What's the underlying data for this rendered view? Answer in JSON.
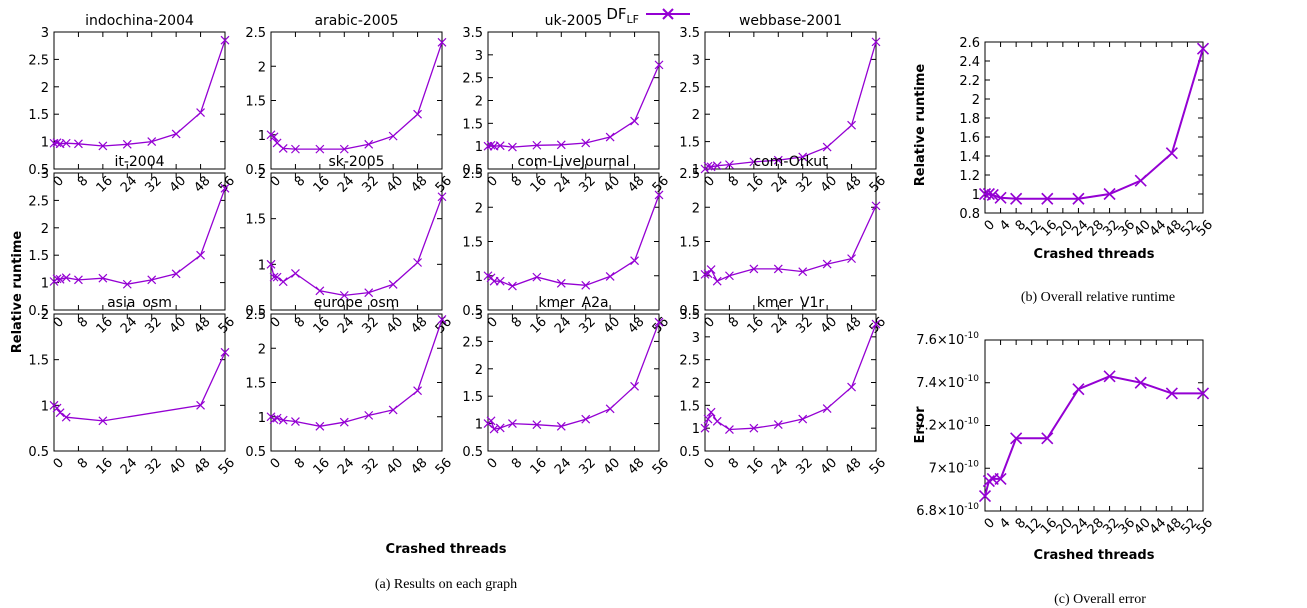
{
  "legend": {
    "label": "DF",
    "label_sub": "LF",
    "series_color": "#9400d3"
  },
  "captions": {
    "a": "(a)  Results on each graph",
    "b": "(b)  Overall relative runtime",
    "c": "(c)  Overall error"
  },
  "labels": {
    "grid_ylabel": "Relative runtime",
    "grid_xlabel": "Crashed threads",
    "b_ylabel": "Relative runtime",
    "b_xlabel": "Crashed threads",
    "c_ylabel": "Error",
    "c_xlabel": "Crashed threads"
  },
  "chart_data": [
    {
      "id": "indochina-2004",
      "type": "line",
      "title": "indochina-2004",
      "x": [
        0,
        1,
        2,
        4,
        8,
        16,
        24,
        32,
        40,
        48,
        56
      ],
      "y": [
        0.97,
        0.98,
        0.96,
        0.97,
        0.96,
        0.92,
        0.95,
        1.0,
        1.14,
        1.53,
        2.85
      ],
      "ylim": [
        0.5,
        3
      ],
      "yticks": [
        "0.5",
        "1",
        "1.5",
        "2",
        "2.5",
        "3"
      ],
      "xticks": [
        "0",
        "8",
        "16",
        "24",
        "32",
        "40",
        "48",
        "56"
      ],
      "series_name": "DF_LF"
    },
    {
      "id": "arabic-2005",
      "type": "line",
      "title": "arabic-2005",
      "x": [
        0,
        1,
        2,
        4,
        8,
        16,
        24,
        32,
        40,
        48,
        56
      ],
      "y": [
        1.0,
        0.97,
        0.88,
        0.8,
        0.79,
        0.79,
        0.79,
        0.86,
        0.98,
        1.3,
        2.35
      ],
      "ylim": [
        0.5,
        2.5
      ],
      "yticks": [
        "0.5",
        "1",
        "1.5",
        "2",
        "2.5"
      ],
      "xticks": [
        "0",
        "8",
        "16",
        "24",
        "32",
        "40",
        "48",
        "56"
      ],
      "series_name": "DF_LF"
    },
    {
      "id": "uk-2005",
      "type": "line",
      "title": "uk-2005",
      "x": [
        0,
        1,
        2,
        4,
        8,
        16,
        24,
        32,
        40,
        48,
        56
      ],
      "y": [
        1.0,
        1.02,
        1.0,
        1.01,
        0.98,
        1.02,
        1.03,
        1.07,
        1.2,
        1.55,
        2.78
      ],
      "ylim": [
        0.5,
        3.5
      ],
      "yticks": [
        "0.5",
        "1",
        "1.5",
        "2",
        "2.5",
        "3",
        "3.5"
      ],
      "xticks": [
        "0",
        "8",
        "16",
        "24",
        "32",
        "40",
        "48",
        "56"
      ],
      "series_name": "DF_LF"
    },
    {
      "id": "webbase-2001",
      "type": "line",
      "title": "webbase-2001",
      "x": [
        0,
        1,
        2,
        4,
        8,
        16,
        24,
        32,
        40,
        48,
        56
      ],
      "y": [
        1.0,
        1.05,
        1.04,
        1.06,
        1.08,
        1.13,
        1.16,
        1.22,
        1.4,
        1.8,
        3.32
      ],
      "ylim": [
        1,
        3.5
      ],
      "yticks": [
        "1",
        "1.5",
        "2",
        "2.5",
        "3",
        "3.5"
      ],
      "xticks": [
        "0",
        "8",
        "16",
        "24",
        "32",
        "40",
        "48",
        "56"
      ],
      "series_name": "DF_LF"
    },
    {
      "id": "it-2004",
      "type": "line",
      "title": "it-2004",
      "x": [
        0,
        1,
        2,
        4,
        8,
        16,
        24,
        32,
        40,
        48,
        56
      ],
      "y": [
        1.02,
        1.07,
        1.06,
        1.09,
        1.05,
        1.08,
        0.97,
        1.05,
        1.16,
        1.5,
        2.72
      ],
      "ylim": [
        0.5,
        3
      ],
      "yticks": [
        "0.5",
        "1",
        "1.5",
        "2",
        "2.5",
        "3"
      ],
      "xticks": [
        "0",
        "8",
        "16",
        "24",
        "32",
        "40",
        "48",
        "56"
      ],
      "series_name": "DF_LF"
    },
    {
      "id": "sk-2005",
      "type": "line",
      "title": "sk-2005",
      "x": [
        0,
        1,
        2,
        4,
        8,
        16,
        24,
        32,
        40,
        48,
        56
      ],
      "y": [
        1.0,
        0.86,
        0.86,
        0.81,
        0.9,
        0.71,
        0.66,
        0.69,
        0.78,
        1.02,
        1.74
      ],
      "ylim": [
        0.5,
        2
      ],
      "yticks": [
        "0.5",
        "1",
        "1.5",
        "2"
      ],
      "xticks": [
        "0",
        "8",
        "16",
        "24",
        "32",
        "40",
        "48",
        "56"
      ],
      "series_name": "DF_LF"
    },
    {
      "id": "com-LiveJournal",
      "type": "line",
      "title": "com-LiveJournal",
      "x": [
        0,
        1,
        2,
        4,
        8,
        16,
        24,
        32,
        40,
        48,
        56
      ],
      "y": [
        1.0,
        0.97,
        0.92,
        0.92,
        0.85,
        0.98,
        0.89,
        0.86,
        0.99,
        1.22,
        2.18
      ],
      "ylim": [
        0.5,
        2.5
      ],
      "yticks": [
        "0.5",
        "1",
        "1.5",
        "2",
        "2.5"
      ],
      "xticks": [
        "0",
        "8",
        "16",
        "24",
        "32",
        "40",
        "48",
        "56"
      ],
      "series_name": "DF_LF"
    },
    {
      "id": "com-Orkut",
      "type": "line",
      "title": "com-Orkut",
      "x": [
        0,
        1,
        2,
        4,
        8,
        16,
        24,
        32,
        40,
        48,
        56
      ],
      "y": [
        1.02,
        1.03,
        1.09,
        0.92,
        1.0,
        1.1,
        1.1,
        1.06,
        1.17,
        1.25,
        2.02
      ],
      "ylim": [
        0.5,
        2.5
      ],
      "yticks": [
        "0.5",
        "1",
        "1.5",
        "2",
        "2.5"
      ],
      "xticks": [
        "0",
        "8",
        "16",
        "24",
        "32",
        "40",
        "48",
        "56"
      ],
      "series_name": "DF_LF"
    },
    {
      "id": "asia_osm",
      "type": "line",
      "title": "asia_osm",
      "x": [
        0,
        1,
        2,
        4,
        16,
        48,
        56
      ],
      "y": [
        1.0,
        0.97,
        0.92,
        0.87,
        0.83,
        1.0,
        1.58
      ],
      "ylim": [
        0.5,
        2
      ],
      "yticks": [
        "0.5",
        "1",
        "1.5",
        "2"
      ],
      "xticks": [
        "0",
        "8",
        "16",
        "24",
        "32",
        "40",
        "48",
        "56"
      ],
      "series_name": "DF_LF"
    },
    {
      "id": "europe_osm",
      "type": "line",
      "title": "europe_osm",
      "x": [
        0,
        1,
        2,
        4,
        8,
        16,
        24,
        32,
        40,
        48,
        56
      ],
      "y": [
        1.0,
        0.96,
        0.98,
        0.95,
        0.93,
        0.86,
        0.92,
        1.02,
        1.1,
        1.38,
        2.42
      ],
      "ylim": [
        0.5,
        2.5
      ],
      "yticks": [
        "0.5",
        "1",
        "1.5",
        "2",
        "2.5"
      ],
      "xticks": [
        "0",
        "8",
        "16",
        "24",
        "32",
        "40",
        "48",
        "56"
      ],
      "series_name": "DF_LF"
    },
    {
      "id": "kmer_A2a",
      "type": "line",
      "title": "kmer_A2a",
      "x": [
        0,
        1,
        2,
        4,
        8,
        16,
        24,
        32,
        40,
        48,
        56
      ],
      "y": [
        1.0,
        1.05,
        0.9,
        0.92,
        1.0,
        0.98,
        0.95,
        1.08,
        1.27,
        1.68,
        2.85
      ],
      "ylim": [
        0.5,
        3
      ],
      "yticks": [
        "0.5",
        "1",
        "1.5",
        "2",
        "2.5",
        "3"
      ],
      "xticks": [
        "0",
        "8",
        "16",
        "24",
        "32",
        "40",
        "48",
        "56"
      ],
      "series_name": "DF_LF"
    },
    {
      "id": "kmer_V1r",
      "type": "line",
      "title": "kmer_V1r",
      "x": [
        0,
        1,
        2,
        4,
        8,
        16,
        24,
        32,
        40,
        48,
        56
      ],
      "y": [
        1.0,
        1.2,
        1.35,
        1.15,
        0.97,
        1.0,
        1.08,
        1.2,
        1.43,
        1.9,
        3.28
      ],
      "ylim": [
        0.5,
        3.5
      ],
      "yticks": [
        "0.5",
        "1",
        "1.5",
        "2",
        "2.5",
        "3",
        "3.5"
      ],
      "xticks": [
        "0",
        "8",
        "16",
        "24",
        "32",
        "40",
        "48",
        "56"
      ],
      "series_name": "DF_LF"
    },
    {
      "id": "overall-runtime",
      "type": "line",
      "title": "",
      "x": [
        0,
        1,
        2,
        4,
        8,
        16,
        24,
        32,
        40,
        48,
        56
      ],
      "y": [
        1.0,
        1.0,
        0.99,
        0.96,
        0.95,
        0.95,
        0.95,
        1.0,
        1.14,
        1.43,
        2.53
      ],
      "ylim": [
        0.8,
        2.6
      ],
      "yticks": [
        "0.8",
        "1",
        "1.2",
        "1.4",
        "1.6",
        "1.8",
        "2",
        "2.2",
        "2.4",
        "2.6"
      ],
      "xticks": [
        "0",
        "4",
        "8",
        "12",
        "16",
        "20",
        "24",
        "28",
        "32",
        "36",
        "40",
        "44",
        "48",
        "52",
        "56"
      ],
      "xlabel": "Crashed threads",
      "ylabel": "Relative runtime",
      "series_name": "DF_LF"
    },
    {
      "id": "overall-error",
      "type": "line",
      "title": "",
      "x": [
        0,
        1,
        2,
        4,
        8,
        16,
        24,
        32,
        40,
        48,
        56
      ],
      "y": [
        6.87e-10,
        6.94e-10,
        6.95e-10,
        6.95e-10,
        7.14e-10,
        7.14e-10,
        7.37e-10,
        7.43e-10,
        7.4e-10,
        7.35e-10,
        7.35e-10
      ],
      "ylim": [
        6.8e-10,
        7.6e-10
      ],
      "yticks_mant": [
        "6.8",
        "7",
        "7.2",
        "7.4",
        "7.6"
      ],
      "ytick_exp": "-10",
      "xticks": [
        "0",
        "4",
        "8",
        "12",
        "16",
        "20",
        "24",
        "28",
        "32",
        "36",
        "40",
        "44",
        "48",
        "52",
        "56"
      ],
      "xlabel": "Crashed threads",
      "ylabel": "Error",
      "series_name": "DF_LF"
    }
  ]
}
